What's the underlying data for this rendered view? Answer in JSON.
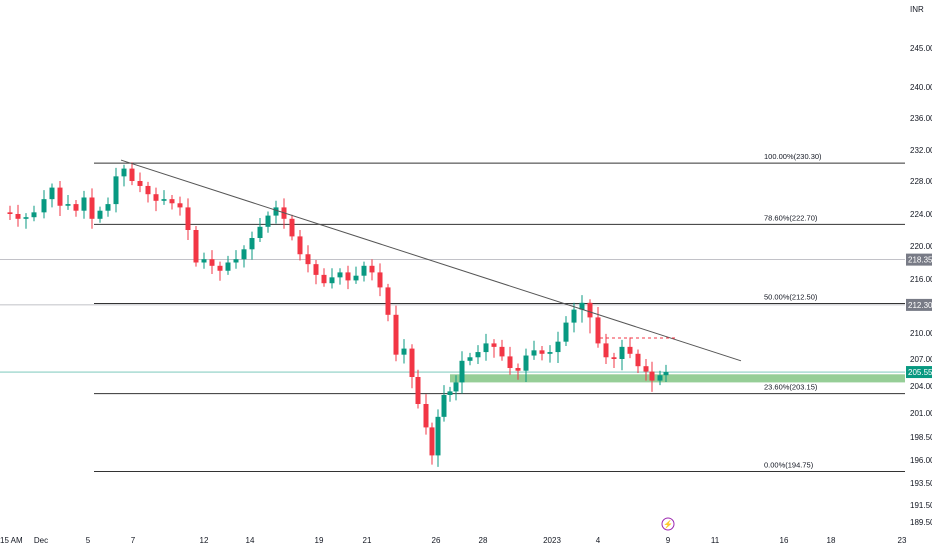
{
  "chart_data": {
    "type": "candlestick",
    "currency": "INR",
    "y_ticks": [
      "245.00",
      "240.00",
      "236.00",
      "232.00",
      "228.00",
      "224.00",
      "220.00",
      "216.00",
      "212.00",
      "210.00",
      "207.00",
      "204.00",
      "201.00",
      "198.50",
      "196.00",
      "193.50",
      "191.50",
      "189.50"
    ],
    "x_ticks": [
      "15 AM",
      "Dec",
      "5",
      "7",
      "12",
      "14",
      "19",
      "21",
      "26",
      "28",
      "2023",
      "4",
      "9",
      "11",
      "16",
      "18",
      "23"
    ],
    "ylim": [
      189.5,
      245
    ],
    "price_tags": [
      {
        "label": "218.35",
        "value": 218.35,
        "color": "#787b86"
      },
      {
        "label": "212.30",
        "value": 212.3,
        "color": "#787b86"
      },
      {
        "label": "205.55",
        "value": 205.55,
        "color": "#089981"
      }
    ],
    "fibonacci": [
      {
        "label": "100.00%(230.30)",
        "value": 230.3
      },
      {
        "label": "78.60%(222.70)",
        "value": 222.7
      },
      {
        "label": "50.00%(212.50)",
        "value": 212.5
      },
      {
        "label": "23.60%(203.15)",
        "value": 203.15
      },
      {
        "label": "0.00%(194.75)",
        "value": 194.75
      }
    ],
    "support_zone": [
      204.4,
      205.3
    ],
    "trendline": [
      {
        "x": "Dec 7",
        "y": 230.7
      },
      {
        "x": "Jan 13",
        "y": 206.8
      }
    ],
    "colors": {
      "up": "#089981",
      "down": "#f23645",
      "zone": "#8bc98c",
      "trend": "#555555"
    }
  }
}
